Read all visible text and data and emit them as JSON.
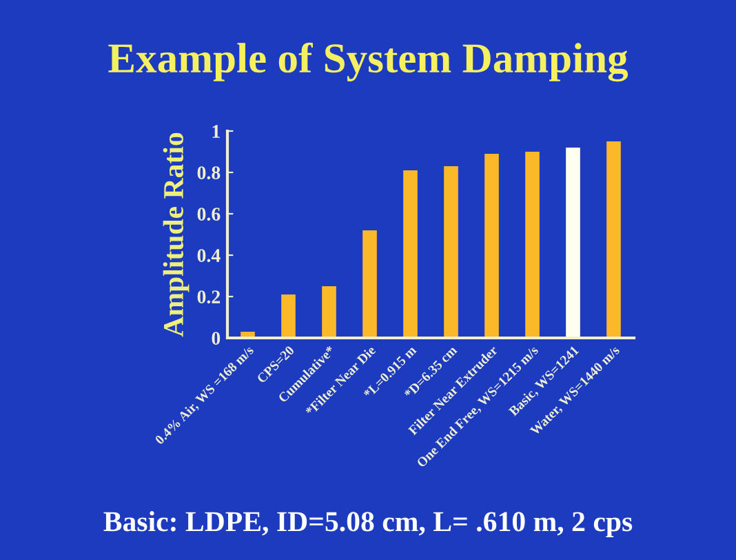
{
  "chart_data": {
    "type": "bar",
    "title": "Example of System Damping",
    "ylabel": "Amplitude Ratio",
    "categories": [
      "0.4% Air, WS =168 m/s",
      "CPS=20",
      "Cumulative*",
      "*Filter Near Die",
      "*L=0.915 m",
      "*D=6.35 cm",
      "Filter Near Extruder",
      "One End Free, WS=1215 m/s",
      "Basic, WS=1241",
      "Water, WS=1440 m/s"
    ],
    "values": [
      0.03,
      0.21,
      0.25,
      0.52,
      0.81,
      0.83,
      0.89,
      0.9,
      0.92,
      0.95
    ],
    "colors": [
      "#fbb829",
      "#fbb829",
      "#fbb829",
      "#fbb829",
      "#fbb829",
      "#fbb829",
      "#fbb829",
      "#fbb829",
      "#fffff0",
      "#fbb829"
    ],
    "ylim": [
      0,
      1
    ],
    "yticks": [
      0,
      0.2,
      0.4,
      0.6,
      0.8,
      1
    ],
    "grid": false,
    "legend": false,
    "annotations": [
      "Basic: LDPE, ID=5.08 cm, L= .610 m, 2 cps"
    ]
  }
}
